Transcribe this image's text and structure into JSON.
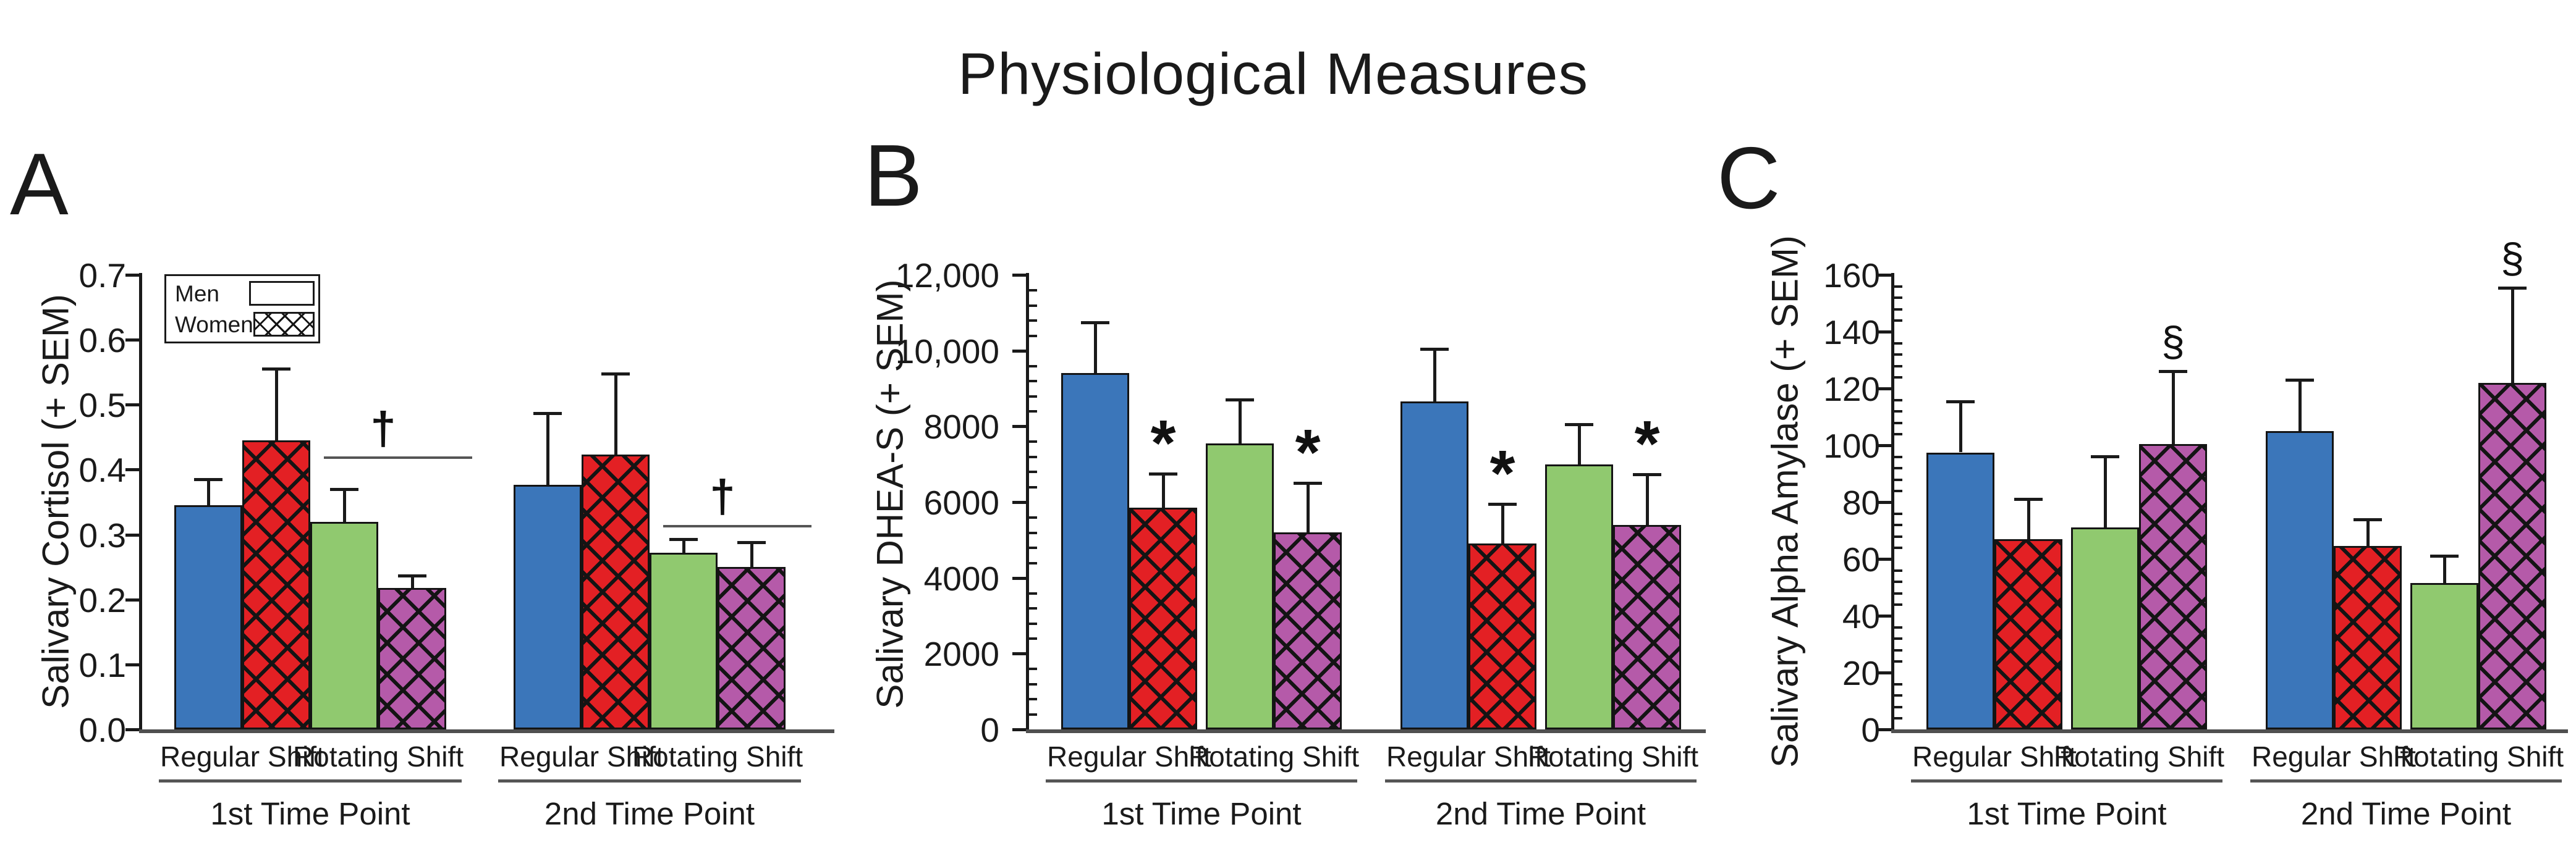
{
  "title": "Physiological Measures",
  "legend": {
    "men_label": "Men",
    "women_label": "Women"
  },
  "colors": {
    "men_regular": "#3B76BA",
    "women_regular": "#E32024",
    "men_rotating": "#90C96F",
    "women_rotating": "#B55AA9",
    "hatch": "#141414",
    "axis": "#1a1a1a",
    "baseline": "#4f4f4f"
  },
  "chart_data": [
    {
      "panel_letter": "A",
      "type": "bar",
      "ylabel": "Salivary Cortisol (+ SEM)",
      "ylim": [
        0,
        0.7
      ],
      "ytick_labels": [
        "0.0",
        "0.1",
        "0.2",
        "0.3",
        "0.4",
        "0.5",
        "0.6",
        "0.7"
      ],
      "minor_ticks_per_major": 0,
      "grid": false,
      "legend_position": "top-left-inside",
      "x_groups": [
        {
          "label": "1st Time Point",
          "shifts": [
            "Regular Shift",
            "Rotating Shift"
          ]
        },
        {
          "label": "2nd Time Point",
          "shifts": [
            "Regular Shift",
            "Rotating Shift"
          ]
        }
      ],
      "series": [
        {
          "time_point": "1st Time Point",
          "shift": "Regular Shift",
          "sex": "Men",
          "value": 0.345,
          "sem": 0.04,
          "sig": ""
        },
        {
          "time_point": "1st Time Point",
          "shift": "Regular Shift",
          "sex": "Women",
          "value": 0.445,
          "sem": 0.11,
          "sig": ""
        },
        {
          "time_point": "1st Time Point",
          "shift": "Rotating Shift",
          "sex": "Men",
          "value": 0.32,
          "sem": 0.05,
          "sig": ""
        },
        {
          "time_point": "1st Time Point",
          "shift": "Rotating Shift",
          "sex": "Women",
          "value": 0.218,
          "sem": 0.019,
          "sig": ""
        },
        {
          "time_point": "2nd Time Point",
          "shift": "Regular Shift",
          "sex": "Men",
          "value": 0.377,
          "sem": 0.11,
          "sig": ""
        },
        {
          "time_point": "2nd Time Point",
          "shift": "Regular Shift",
          "sex": "Women",
          "value": 0.423,
          "sem": 0.125,
          "sig": ""
        },
        {
          "time_point": "2nd Time Point",
          "shift": "Rotating Shift",
          "sex": "Men",
          "value": 0.272,
          "sem": 0.021,
          "sig": ""
        },
        {
          "time_point": "2nd Time Point",
          "shift": "Rotating Shift",
          "sex": "Women",
          "value": 0.25,
          "sem": 0.038,
          "sig": ""
        }
      ],
      "annotations": [
        {
          "symbol": "†",
          "time_point": "1st Time Point",
          "over": "Rotating Shift",
          "line_value": 0.42,
          "symbol_value": 0.462
        },
        {
          "symbol": "†",
          "time_point": "2nd Time Point",
          "over": "Rotating Shift",
          "line_value": 0.315,
          "symbol_value": 0.358
        }
      ]
    },
    {
      "panel_letter": "B",
      "type": "bar",
      "ylabel": "Salivary DHEA-S (+ SEM)",
      "ylim": [
        0,
        12000
      ],
      "ytick_labels": [
        "0",
        "2000",
        "4000",
        "6000",
        "8000",
        "10,000",
        "12,000"
      ],
      "minor_ticks_per_major": 4,
      "grid": false,
      "x_groups": [
        {
          "label": "1st Time Point",
          "shifts": [
            "Regular Shift",
            "Rotating Shift"
          ]
        },
        {
          "label": "2nd Time Point",
          "shifts": [
            "Regular Shift",
            "Rotating Shift"
          ]
        }
      ],
      "series": [
        {
          "time_point": "1st Time Point",
          "shift": "Regular Shift",
          "sex": "Men",
          "value": 9400,
          "sem": 1350,
          "sig": ""
        },
        {
          "time_point": "1st Time Point",
          "shift": "Regular Shift",
          "sex": "Women",
          "value": 5850,
          "sem": 900,
          "sig": "*"
        },
        {
          "time_point": "1st Time Point",
          "shift": "Rotating Shift",
          "sex": "Men",
          "value": 7550,
          "sem": 1150,
          "sig": ""
        },
        {
          "time_point": "1st Time Point",
          "shift": "Rotating Shift",
          "sex": "Women",
          "value": 5200,
          "sem": 1300,
          "sig": "*"
        },
        {
          "time_point": "2nd Time Point",
          "shift": "Regular Shift",
          "sex": "Men",
          "value": 8650,
          "sem": 1400,
          "sig": ""
        },
        {
          "time_point": "2nd Time Point",
          "shift": "Regular Shift",
          "sex": "Women",
          "value": 4900,
          "sem": 1050,
          "sig": "*"
        },
        {
          "time_point": "2nd Time Point",
          "shift": "Rotating Shift",
          "sex": "Men",
          "value": 7000,
          "sem": 1050,
          "sig": ""
        },
        {
          "time_point": "2nd Time Point",
          "shift": "Rotating Shift",
          "sex": "Women",
          "value": 5400,
          "sem": 1330,
          "sig": "*"
        }
      ],
      "annotations": []
    },
    {
      "panel_letter": "C",
      "type": "bar",
      "ylabel": "Salivary Alpha Amylase (+ SEM)",
      "ylim": [
        0,
        160
      ],
      "ytick_labels": [
        "0",
        "20",
        "40",
        "60",
        "80",
        "100",
        "120",
        "140",
        "160"
      ],
      "minor_ticks_per_major": 4,
      "grid": false,
      "x_groups": [
        {
          "label": "1st Time Point",
          "shifts": [
            "Regular Shift",
            "Rotating Shift"
          ]
        },
        {
          "label": "2nd Time Point",
          "shifts": [
            "Regular Shift",
            "Rotating Shift"
          ]
        }
      ],
      "series": [
        {
          "time_point": "1st Time Point",
          "shift": "Regular Shift",
          "sex": "Men",
          "value": 97.5,
          "sem": 18.0,
          "sig": ""
        },
        {
          "time_point": "1st Time Point",
          "shift": "Regular Shift",
          "sex": "Women",
          "value": 67.0,
          "sem": 14.0,
          "sig": ""
        },
        {
          "time_point": "1st Time Point",
          "shift": "Rotating Shift",
          "sex": "Men",
          "value": 71.0,
          "sem": 25.0,
          "sig": ""
        },
        {
          "time_point": "1st Time Point",
          "shift": "Rotating Shift",
          "sex": "Women",
          "value": 100.5,
          "sem": 25.5,
          "sig": "§"
        },
        {
          "time_point": "2nd Time Point",
          "shift": "Regular Shift",
          "sex": "Men",
          "value": 105.0,
          "sem": 18.0,
          "sig": ""
        },
        {
          "time_point": "2nd Time Point",
          "shift": "Regular Shift",
          "sex": "Women",
          "value": 64.5,
          "sem": 9.5,
          "sig": ""
        },
        {
          "time_point": "2nd Time Point",
          "shift": "Rotating Shift",
          "sex": "Men",
          "value": 51.5,
          "sem": 9.5,
          "sig": ""
        },
        {
          "time_point": "2nd Time Point",
          "shift": "Rotating Shift",
          "sex": "Women",
          "value": 122.0,
          "sem": 33.5,
          "sig": "§"
        }
      ],
      "annotations": []
    }
  ]
}
